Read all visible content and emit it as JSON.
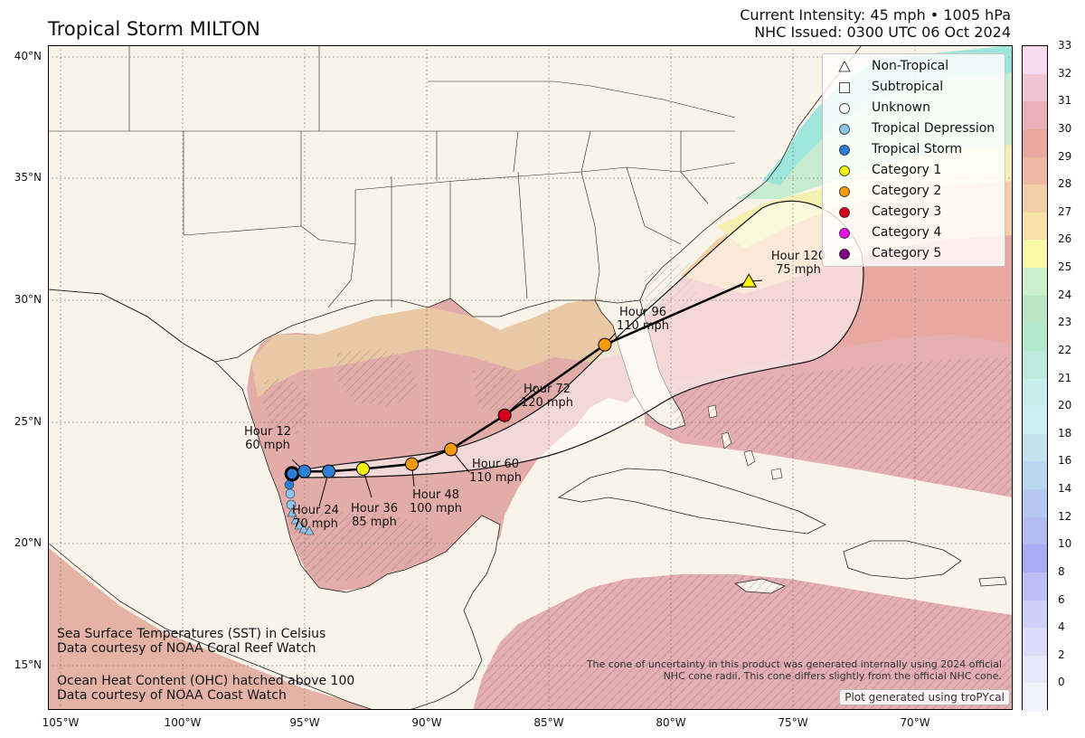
{
  "header": {
    "title": "Tropical Storm MILTON",
    "intensity": "Current Intensity: 45 mph • 1005 hPa",
    "issued": "NHC Issued: 0300 UTC 06 Oct 2024"
  },
  "axes": {
    "lat_ticks": [
      "40°N",
      "35°N",
      "30°N",
      "25°N",
      "20°N",
      "15°N"
    ],
    "lon_ticks": [
      "105°W",
      "100°W",
      "95°W",
      "90°W",
      "85°W",
      "80°W",
      "75°W",
      "70°W"
    ],
    "lat_range": [
      13.2,
      40.5
    ],
    "lon_range": [
      -105,
      -65.5
    ]
  },
  "colorbar": {
    "ticks": [
      "33",
      "32",
      "31",
      "30",
      "29",
      "28",
      "27",
      "26",
      "25",
      "24",
      "23",
      "22",
      "21",
      "20",
      "18",
      "16",
      "14",
      "12",
      "10",
      "8",
      "6",
      "4",
      "2",
      "0"
    ],
    "colors": [
      "#f7dcef",
      "#f1c4d4",
      "#eab0b7",
      "#e7a9a2",
      "#efb8a4",
      "#f3cfa7",
      "#f6e3a8",
      "#f8f8a6",
      "#cdeecd",
      "#b9e6c4",
      "#b6e8cd",
      "#bde9de",
      "#c6eeea",
      "#cbeef2",
      "#c3e2ee",
      "#bdd6ef",
      "#b7c9f0",
      "#b2bcf3",
      "#a9aef2",
      "#bdbff4",
      "#cfd0f6",
      "#dcdcf8",
      "#e8e8fb",
      "#f3f3fd"
    ]
  },
  "legend": {
    "items": [
      {
        "label": "Non-Tropical",
        "shape": "triangle",
        "color": "#ffffff"
      },
      {
        "label": "Subtropical",
        "shape": "square",
        "color": "#ffffff"
      },
      {
        "label": "Unknown",
        "shape": "circle",
        "color": "#ffffff"
      },
      {
        "label": "Tropical Depression",
        "shape": "circle",
        "color": "#8ec4ef"
      },
      {
        "label": "Tropical Storm",
        "shape": "circle",
        "color": "#2d7fd6"
      },
      {
        "label": "Category 1",
        "shape": "circle",
        "color": "#f8f800"
      },
      {
        "label": "Category 2",
        "shape": "circle",
        "color": "#f59a0a"
      },
      {
        "label": "Category 3",
        "shape": "circle",
        "color": "#d4001a"
      },
      {
        "label": "Category 4",
        "shape": "circle",
        "color": "#ee10ee"
      },
      {
        "label": "Category 5",
        "shape": "circle",
        "color": "#7c0080"
      }
    ]
  },
  "forecast": {
    "points": [
      {
        "hour": "Hour 12",
        "wind": "60 mph",
        "lon": -94.5,
        "lat": 23.0,
        "category": "Tropical Storm",
        "color": "#2d7fd6"
      },
      {
        "hour": "Hour 24",
        "wind": "70 mph",
        "lon": -93.5,
        "lat": 23.0,
        "category": "Tropical Storm",
        "color": "#2d7fd6"
      },
      {
        "hour": "Hour 36",
        "wind": "85 mph",
        "lon": -92.1,
        "lat": 23.1,
        "category": "Category 1",
        "color": "#f8f800"
      },
      {
        "hour": "Hour 48",
        "wind": "100 mph",
        "lon": -90.1,
        "lat": 23.3,
        "category": "Category 2",
        "color": "#f59a0a"
      },
      {
        "hour": "Hour 60",
        "wind": "110 mph",
        "lon": -88.5,
        "lat": 23.9,
        "category": "Category 2",
        "color": "#f59a0a"
      },
      {
        "hour": "Hour 72",
        "wind": "120 mph",
        "lon": -86.3,
        "lat": 25.3,
        "category": "Category 3",
        "color": "#d4001a"
      },
      {
        "hour": "Hour 96",
        "wind": "110 mph",
        "lon": -82.2,
        "lat": 28.2,
        "category": "Category 2",
        "color": "#f59a0a"
      },
      {
        "hour": "Hour 120",
        "wind": "75 mph",
        "lon": -76.3,
        "lat": 30.8,
        "category": "Category 1",
        "color": "#f8f800"
      }
    ],
    "current": {
      "lon": -95.0,
      "lat": 22.9,
      "color": "#2d7fd6"
    }
  },
  "notes": {
    "sst_line1": "Sea Surface Temperatures (SST) in Celsius",
    "sst_line2": "Data courtesy of NOAA Coral Reef Watch",
    "ohc_line1": "Ocean Heat Content (OHC) hatched above 100",
    "ohc_line2": "Data courtesy of NOAA Coast Watch",
    "disclaimer1": "The cone of uncertainty in this product was generated internally using 2024 official",
    "disclaimer2": "NHC cone radii. This cone differs slightly from the official NHC cone.",
    "credit": "Plot generated using troPYcal"
  }
}
